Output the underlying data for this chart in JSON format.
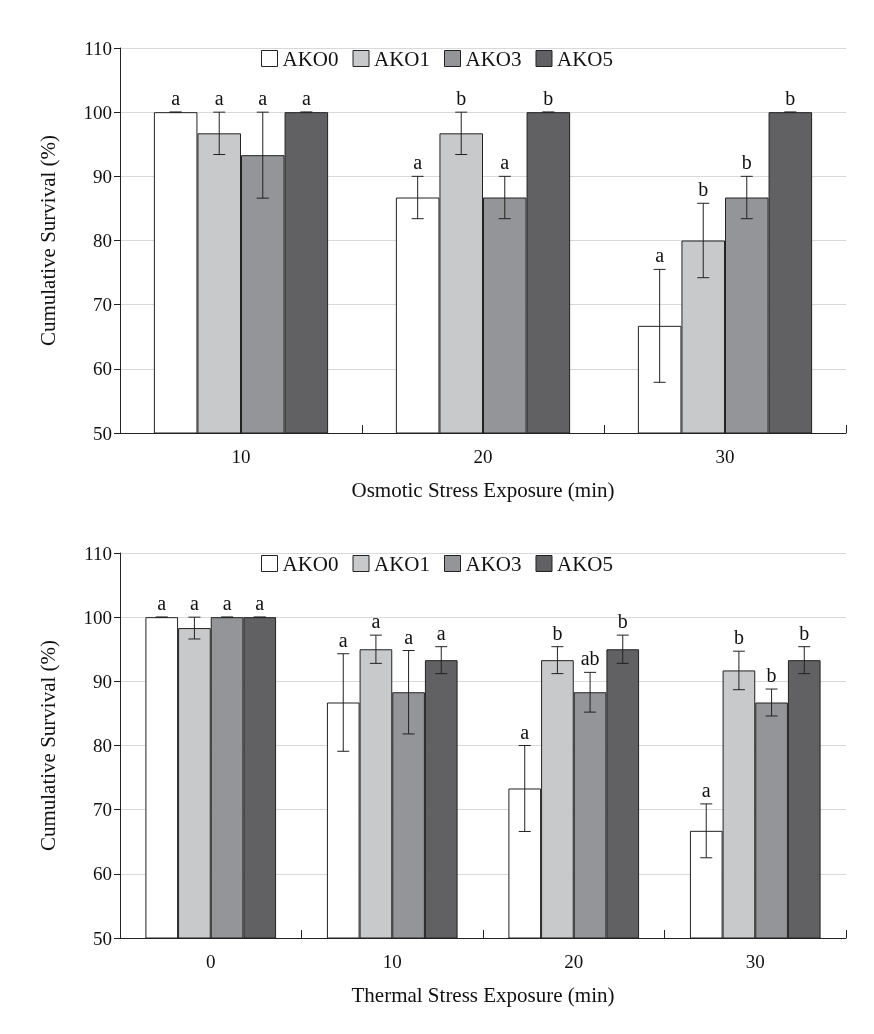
{
  "chart_data": [
    {
      "type": "bar",
      "xlabel": "Osmotic Stress Exposure (min)",
      "ylabel": "Cumulative Survival (%)",
      "categories": [
        "10",
        "20",
        "30"
      ],
      "ylim": [
        50,
        110
      ],
      "yticks": [
        50,
        60,
        70,
        80,
        90,
        100,
        110
      ],
      "grid": "y",
      "legend": "top",
      "series": [
        {
          "name": "AKO0",
          "color": "#ffffff",
          "values": [
            100,
            86.7,
            66.7
          ],
          "errors": [
            0,
            3.3,
            8.8
          ],
          "value_labels": [
            "a",
            "a",
            "a"
          ]
        },
        {
          "name": "AKO1",
          "color": "#c8c9cb",
          "values": [
            96.7,
            96.7,
            80
          ],
          "errors": [
            3.3,
            3.3,
            5.8
          ],
          "value_labels": [
            "a",
            "b",
            "b"
          ]
        },
        {
          "name": "AKO3",
          "color": "#939598",
          "values": [
            93.3,
            86.7,
            86.7
          ],
          "errors": [
            6.7,
            3.3,
            3.3
          ],
          "value_labels": [
            "a",
            "a",
            "b"
          ]
        },
        {
          "name": "AKO5",
          "color": "#616163",
          "values": [
            100,
            100,
            100
          ],
          "errors": [
            0,
            0,
            0
          ],
          "value_labels": [
            "a",
            "b",
            "b"
          ]
        }
      ]
    },
    {
      "type": "bar",
      "xlabel": "Thermal Stress Exposure (min)",
      "ylabel": "Cumulative Survival (%)",
      "categories": [
        "0",
        "10",
        "20",
        "30"
      ],
      "ylim": [
        50,
        110
      ],
      "yticks": [
        50,
        60,
        70,
        80,
        90,
        100,
        110
      ],
      "grid": "y",
      "legend": "top",
      "series": [
        {
          "name": "AKO0",
          "color": "#ffffff",
          "values": [
            100,
            86.7,
            73.3,
            66.7
          ],
          "errors": [
            0,
            7.6,
            6.7,
            4.2
          ],
          "value_labels": [
            "a",
            "a",
            "a",
            "a"
          ]
        },
        {
          "name": "AKO1",
          "color": "#c8c9cb",
          "values": [
            98.3,
            95,
            93.3,
            91.7
          ],
          "errors": [
            1.7,
            2.2,
            2.1,
            3
          ],
          "value_labels": [
            "a",
            "a",
            "b",
            "b"
          ]
        },
        {
          "name": "AKO3",
          "color": "#939598",
          "values": [
            100,
            88.3,
            88.3,
            86.7
          ],
          "errors": [
            0,
            6.5,
            3.1,
            2.1
          ],
          "value_labels": [
            "a",
            "a",
            "ab",
            "b"
          ]
        },
        {
          "name": "AKO5",
          "color": "#616163",
          "values": [
            100,
            93.3,
            95,
            93.3
          ],
          "errors": [
            0,
            2.1,
            2.2,
            2.1
          ],
          "value_labels": [
            "a",
            "a",
            "b",
            "b"
          ]
        }
      ]
    }
  ]
}
